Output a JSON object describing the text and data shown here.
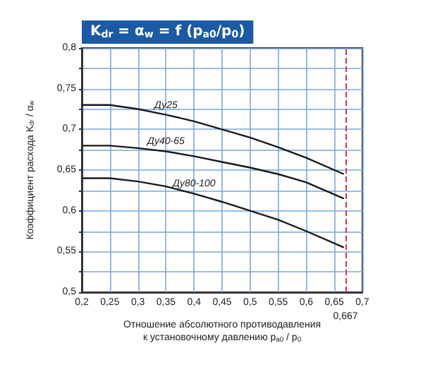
{
  "chart_data": {
    "type": "line",
    "title": "K$_{dr}$ = α$_{w}$ = f (p$_{a0}$/p$_{0}$)",
    "xlabel": "Отношение абсолютного противодавления\nк установочному давлению p$_{a0}$ / p$_{0}$",
    "ylabel": "Коэффициент расхода K$_{dr}$ / α$_{w}$",
    "x": [
      0.2,
      0.25,
      0.3,
      0.35,
      0.4,
      0.45,
      0.5,
      0.55,
      0.6,
      0.667
    ],
    "series": [
      {
        "name": "Ду25",
        "color": "#1a1a1a",
        "values": [
          0.73,
          0.73,
          0.725,
          0.718,
          0.71,
          0.7,
          0.69,
          0.678,
          0.665,
          0.645
        ]
      },
      {
        "name": "Ду40-65",
        "color": "#1a1a1a",
        "values": [
          0.68,
          0.68,
          0.677,
          0.673,
          0.667,
          0.66,
          0.653,
          0.645,
          0.635,
          0.615
        ]
      },
      {
        "name": "Ду80-100",
        "color": "#1a1a1a",
        "values": [
          0.64,
          0.64,
          0.636,
          0.63,
          0.621,
          0.611,
          0.6,
          0.589,
          0.575,
          0.555
        ]
      }
    ],
    "xlim": [
      0.2,
      0.7
    ],
    "xticks": [
      {
        "value": 0.2,
        "label": "0,2"
      },
      {
        "value": 0.25,
        "label": "0,25"
      },
      {
        "value": 0.3,
        "label": "0,3"
      },
      {
        "value": 0.35,
        "label": "0,35"
      },
      {
        "value": 0.4,
        "label": "0,4"
      },
      {
        "value": 0.45,
        "label": "0,45"
      },
      {
        "value": 0.5,
        "label": "0,5"
      },
      {
        "value": 0.55,
        "label": "0,55"
      },
      {
        "value": 0.6,
        "label": "0,6"
      },
      {
        "value": 0.65,
        "label": "0,65"
      },
      {
        "value": 0.7,
        "label": "0,7"
      }
    ],
    "ylim": [
      0.5,
      0.8
    ],
    "yticks": [
      {
        "value": 0.5,
        "label": "0,5"
      },
      {
        "value": 0.525,
        "label": null
      },
      {
        "value": 0.55,
        "label": "0,55"
      },
      {
        "value": 0.575,
        "label": null
      },
      {
        "value": 0.6,
        "label": "0,6"
      },
      {
        "value": 0.625,
        "label": null
      },
      {
        "value": 0.65,
        "label": "0,65"
      },
      {
        "value": 0.675,
        "label": null
      },
      {
        "value": 0.7,
        "label": "0,7"
      },
      {
        "value": 0.725,
        "label": null
      },
      {
        "value": 0.75,
        "label": "0,75"
      },
      {
        "value": 0.775,
        "label": null
      },
      {
        "value": 0.8,
        "label": "0,8"
      }
    ],
    "ref_lines": [
      {
        "axis": "x",
        "value": 0.667,
        "label": "0,667",
        "color": "#e0303a",
        "line_style": "dashed"
      }
    ],
    "grid": true,
    "legend": false,
    "marker": "none",
    "line_style": "solid"
  }
}
